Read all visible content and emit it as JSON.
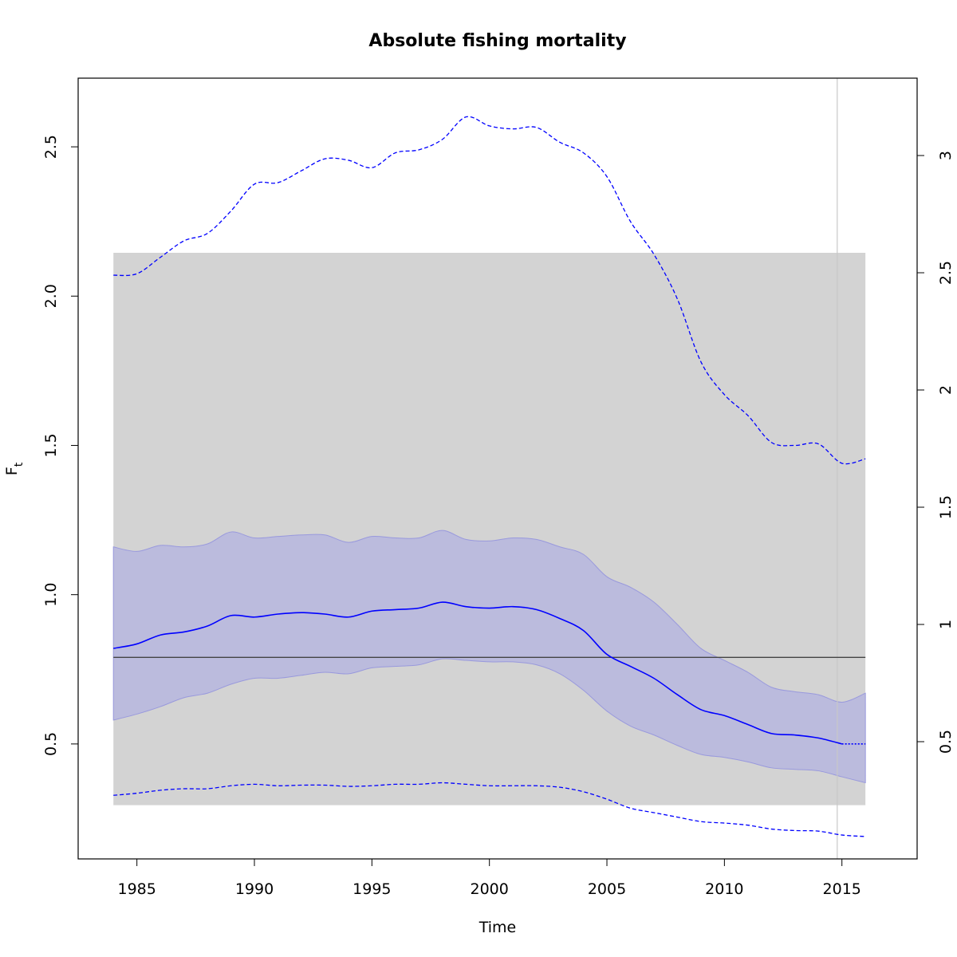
{
  "chart_data": {
    "type": "line",
    "title": "Absolute fishing mortality",
    "xlabel": "Time",
    "ylabel_main": "F",
    "ylabel_sub": "t",
    "xlim": [
      1982.5,
      2018.2
    ],
    "ylim": [
      0.115,
      2.73
    ],
    "right_ylim": [
      0.0,
      3.33
    ],
    "x_ticks": [
      1985,
      1990,
      1995,
      2000,
      2005,
      2010,
      2015
    ],
    "x_tick_labels": [
      "1985",
      "1990",
      "1995",
      "2000",
      "2005",
      "2010",
      "2015"
    ],
    "y_ticks": [
      0.5,
      1.0,
      1.5,
      2.0,
      2.5
    ],
    "y_tick_labels": [
      "0.5",
      "1.0",
      "1.5",
      "2.0",
      "2.5"
    ],
    "right_y_ticks": [
      0.5,
      1,
      1.5,
      2,
      2.5,
      3
    ],
    "right_y_tick_labels": [
      "0.5",
      "1",
      "1.5",
      "2",
      "2.5",
      "3"
    ],
    "reference_region": {
      "x": [
        1984.0,
        2016.0
      ],
      "y": [
        0.295,
        2.145
      ],
      "color": "#d3d3d3"
    },
    "reference_line": {
      "y": 0.79,
      "color": "#444444"
    },
    "vertical_line": {
      "x": 2014.8,
      "color": "#c8c8c8"
    },
    "estimate_end_x": 2015.0,
    "colors": {
      "line": "#0000ff",
      "band": "#bbbbdd",
      "band_edge": "#9999dd"
    },
    "x": [
      1984,
      1985,
      1986,
      1987,
      1988,
      1989,
      1990,
      1991,
      1992,
      1993,
      1994,
      1995,
      1996,
      1997,
      1998,
      1999,
      2000,
      2001,
      2002,
      2003,
      2004,
      2005,
      2006,
      2007,
      2008,
      2009,
      2010,
      2011,
      2012,
      2013,
      2014,
      2015,
      2016
    ],
    "series": [
      {
        "name": "F",
        "values": [
          0.82,
          0.835,
          0.865,
          0.875,
          0.895,
          0.93,
          0.925,
          0.935,
          0.94,
          0.935,
          0.925,
          0.945,
          0.95,
          0.955,
          0.975,
          0.96,
          0.955,
          0.96,
          0.95,
          0.92,
          0.88,
          0.8,
          0.76,
          0.72,
          0.665,
          0.615,
          0.595,
          0.565,
          0.535,
          0.53,
          0.52,
          0.5,
          0.5
        ]
      },
      {
        "name": "ci_upper",
        "values": [
          1.16,
          1.145,
          1.165,
          1.16,
          1.17,
          1.21,
          1.19,
          1.195,
          1.2,
          1.2,
          1.175,
          1.195,
          1.19,
          1.19,
          1.215,
          1.185,
          1.18,
          1.19,
          1.185,
          1.16,
          1.135,
          1.06,
          1.025,
          0.975,
          0.9,
          0.82,
          0.78,
          0.74,
          0.69,
          0.675,
          0.665,
          0.64,
          0.67
        ]
      },
      {
        "name": "ci_lower",
        "values": [
          0.58,
          0.6,
          0.625,
          0.655,
          0.67,
          0.7,
          0.72,
          0.72,
          0.73,
          0.74,
          0.735,
          0.755,
          0.76,
          0.765,
          0.785,
          0.78,
          0.775,
          0.775,
          0.765,
          0.735,
          0.68,
          0.61,
          0.56,
          0.53,
          0.495,
          0.465,
          0.455,
          0.44,
          0.42,
          0.415,
          0.41,
          0.39,
          0.37
        ]
      },
      {
        "name": "upper_dashed",
        "values": [
          2.07,
          2.075,
          2.13,
          2.185,
          2.21,
          2.285,
          2.375,
          2.38,
          2.42,
          2.46,
          2.455,
          2.43,
          2.48,
          2.49,
          2.525,
          2.6,
          2.57,
          2.56,
          2.565,
          2.515,
          2.48,
          2.4,
          2.25,
          2.14,
          1.99,
          1.78,
          1.67,
          1.6,
          1.51,
          1.5,
          1.505,
          1.44,
          1.455
        ]
      },
      {
        "name": "lower_dashed",
        "values": [
          0.328,
          0.335,
          0.345,
          0.35,
          0.35,
          0.36,
          0.365,
          0.36,
          0.362,
          0.362,
          0.358,
          0.36,
          0.365,
          0.365,
          0.37,
          0.365,
          0.36,
          0.36,
          0.36,
          0.355,
          0.34,
          0.315,
          0.285,
          0.27,
          0.255,
          0.24,
          0.235,
          0.228,
          0.215,
          0.21,
          0.208,
          0.195,
          0.19
        ]
      }
    ]
  }
}
